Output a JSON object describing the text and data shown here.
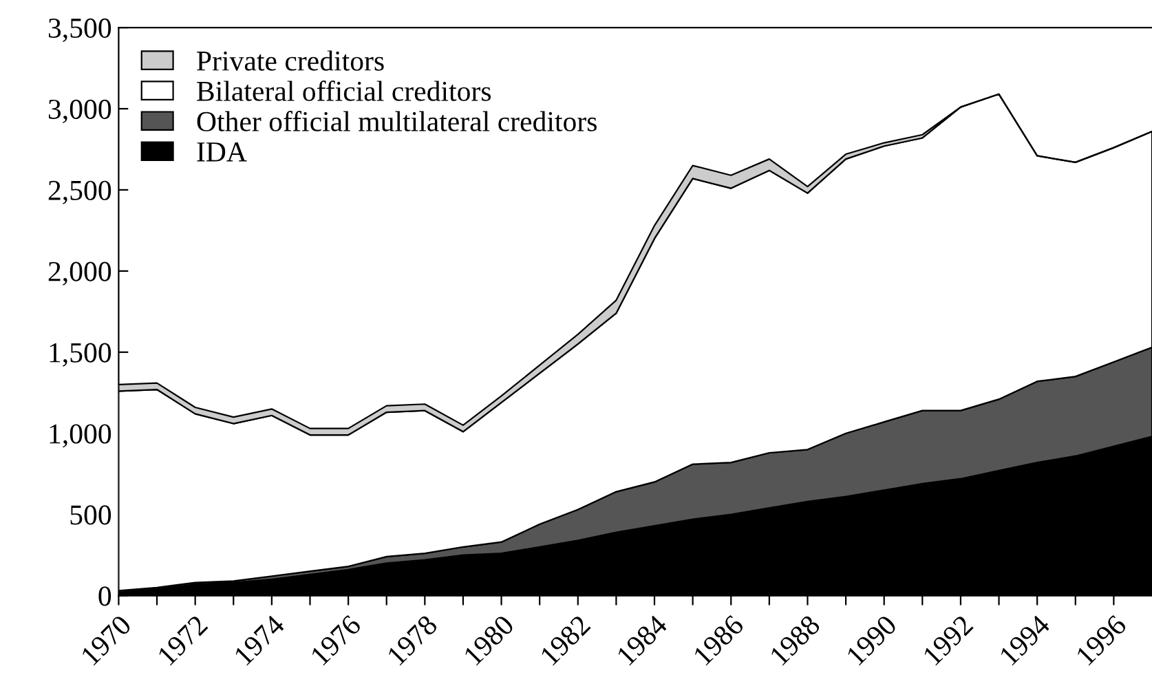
{
  "chart_data": {
    "type": "area",
    "stacked": true,
    "x": [
      1970,
      1971,
      1972,
      1973,
      1974,
      1975,
      1976,
      1977,
      1978,
      1979,
      1980,
      1981,
      1982,
      1983,
      1984,
      1985,
      1986,
      1987,
      1988,
      1989,
      1990,
      1991,
      1992,
      1993,
      1994,
      1995,
      1996,
      1997
    ],
    "series": [
      {
        "name": "IDA",
        "color": "#000000",
        "values": [
          20,
          40,
          70,
          80,
          100,
          130,
          160,
          200,
          220,
          250,
          260,
          300,
          340,
          390,
          430,
          470,
          500,
          540,
          580,
          610,
          650,
          690,
          720,
          770,
          820,
          860,
          920,
          980
        ]
      },
      {
        "name": "Other official multilateral creditors",
        "color": "#555555",
        "values": [
          10,
          10,
          10,
          10,
          20,
          20,
          20,
          40,
          40,
          50,
          70,
          140,
          190,
          250,
          270,
          340,
          320,
          340,
          320,
          390,
          420,
          450,
          420,
          440,
          500,
          490,
          520,
          550
        ]
      },
      {
        "name": "Bilateral official creditors",
        "color": "#ffffff",
        "values": [
          1230,
          1220,
          1040,
          970,
          990,
          840,
          810,
          890,
          880,
          710,
          860,
          930,
          1020,
          1100,
          1500,
          1760,
          1690,
          1740,
          1580,
          1690,
          1700,
          1680,
          1870,
          1880,
          1390,
          1320,
          1320,
          1330
        ]
      },
      {
        "name": "Private creditors",
        "color": "#cccccc",
        "values": [
          40,
          40,
          40,
          40,
          40,
          40,
          40,
          40,
          40,
          40,
          40,
          50,
          60,
          80,
          80,
          80,
          80,
          70,
          40,
          30,
          20,
          20,
          0,
          0,
          0,
          0,
          0,
          0
        ]
      }
    ],
    "xlim": [
      1970,
      1997
    ],
    "xticks": [
      1970,
      {
        "value": 1971,
        "label": null
      },
      1972,
      {
        "value": 1973,
        "label": null
      },
      1974,
      {
        "value": 1975,
        "label": null
      },
      1976,
      {
        "value": 1977,
        "label": null
      },
      1978,
      {
        "value": 1979,
        "label": null
      },
      1980,
      {
        "value": 1981,
        "label": null
      },
      1982,
      {
        "value": 1983,
        "label": null
      },
      1984,
      {
        "value": 1985,
        "label": null
      },
      1986,
      {
        "value": 1987,
        "label": null
      },
      1988,
      {
        "value": 1989,
        "label": null
      },
      1990,
      {
        "value": 1991,
        "label": null
      },
      1992,
      {
        "value": 1993,
        "label": null
      },
      1994,
      {
        "value": 1995,
        "label": null
      },
      1996
    ],
    "ylim": [
      0,
      3500
    ],
    "yticks": [
      0,
      500,
      {
        "value": 1000,
        "label": "1,000"
      },
      {
        "value": 1500,
        "label": "1,500"
      },
      {
        "value": 2000,
        "label": "2,000"
      },
      {
        "value": 2500,
        "label": "2,500"
      },
      {
        "value": 3000,
        "label": "3,000"
      },
      {
        "value": 3500,
        "label": "3,500"
      }
    ],
    "grid": false,
    "legend": "top left"
  }
}
